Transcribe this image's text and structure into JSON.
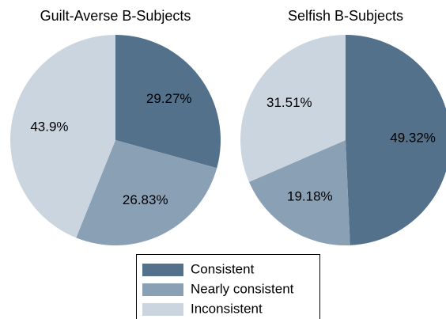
{
  "chart_data": [
    {
      "type": "pie",
      "title": "Guilt-Averse B-Subjects",
      "categories": [
        "Consistent",
        "Nearly consistent",
        "Inconsistent"
      ],
      "values": [
        29.27,
        26.83,
        43.9
      ],
      "value_labels": [
        "29.27%",
        "26.83%",
        "43.9%"
      ],
      "colors": [
        "#53718a",
        "#8aa0b5",
        "#cbd5e0"
      ]
    },
    {
      "type": "pie",
      "title": "Selfish B-Subjects",
      "categories": [
        "Consistent",
        "Nearly consistent",
        "Inconsistent"
      ],
      "values": [
        49.32,
        19.18,
        31.51
      ],
      "value_labels": [
        "49.32%",
        "19.18%",
        "31.51%"
      ],
      "colors": [
        "#53718a",
        "#8aa0b5",
        "#cbd5e0"
      ]
    }
  ]
}
